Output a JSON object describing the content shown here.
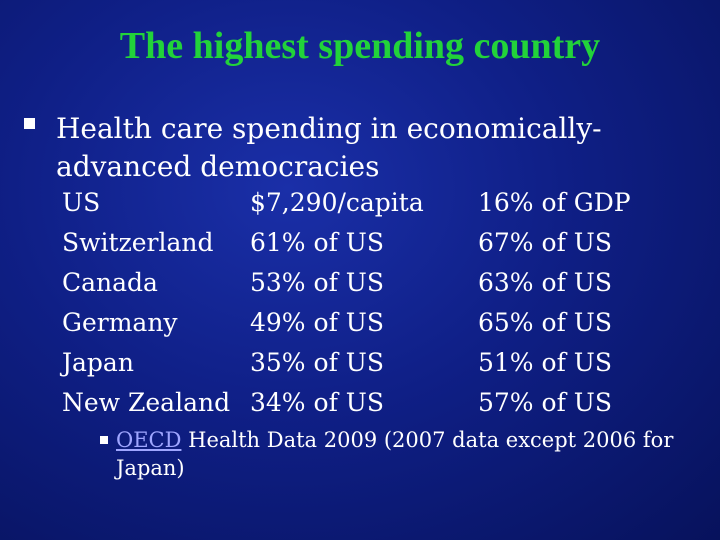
{
  "title": "The highest spending country",
  "bullet": "Health care spending in economically-advanced democracies",
  "rows": [
    {
      "country": "US",
      "a": "$7,290/capita",
      "b": "16% of GDP"
    },
    {
      "country": "Switzerland",
      "a": "61% of US",
      "b": "67% of US"
    },
    {
      "country": "Canada",
      "a": "53% of US",
      "b": "63% of US"
    },
    {
      "country": "Germany",
      "a": "49% of US",
      "b": "65% of US"
    },
    {
      "country": "Japan",
      "a": "35% of US",
      "b": "51% of US"
    },
    {
      "country": "New Zealand",
      "a": "34% of US",
      "b": "57% of US"
    }
  ],
  "note": {
    "link": "OECD",
    "text": " Health Data 2009 (2007 data except 2006 for Japan)"
  },
  "colors": {
    "title": "#22d33a",
    "background": "#0f1f86"
  }
}
